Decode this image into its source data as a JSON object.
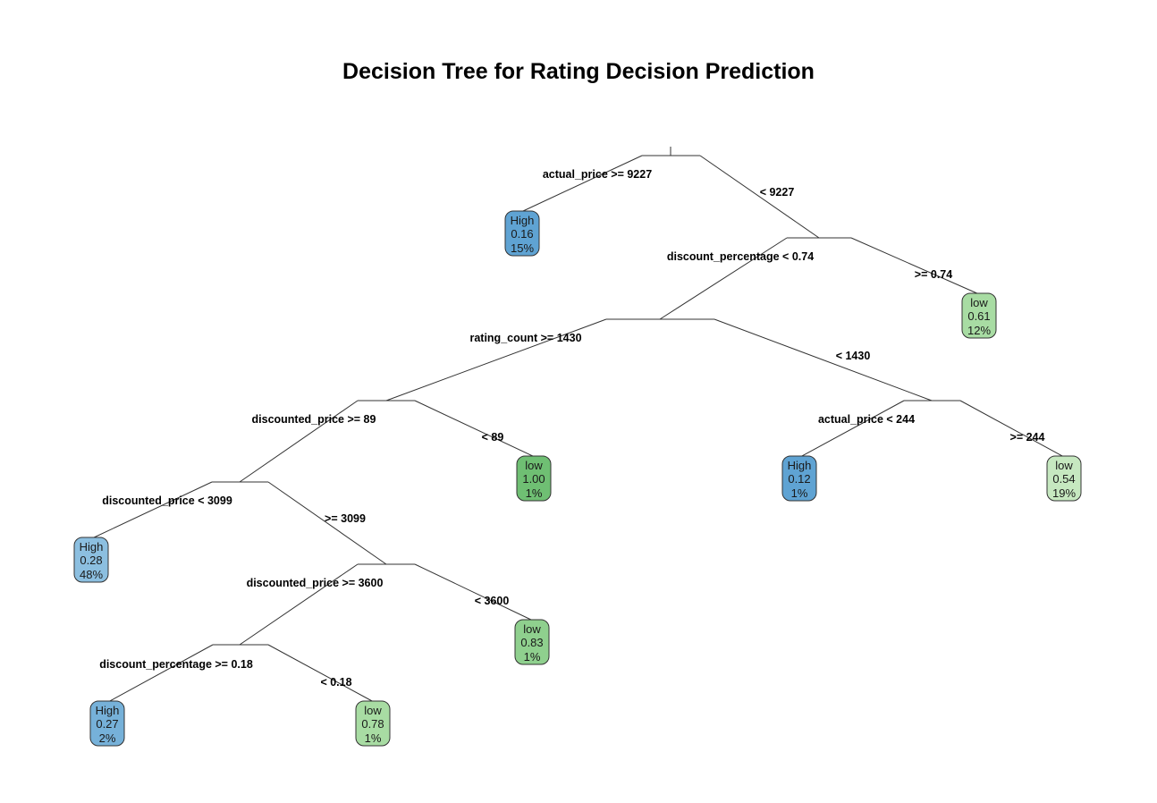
{
  "title": "Decision Tree for Rating Decision Prediction",
  "colors": {
    "high_dark": "#5fa3d3",
    "high_mid": "#76b1d9",
    "high_light": "#8cbfe0",
    "low_strong": "#6fbf73",
    "low_mid": "#8fd08e",
    "low_light": "#a8dca3",
    "low_pale": "#c6e8c0"
  },
  "splits": [
    {
      "id": "root",
      "label": "actual_price >= 9227",
      "yes": "actual_price >= 9227",
      "no": "< 9227"
    },
    {
      "id": "n2",
      "label": "discount_percentage < 0.74",
      "no": ">= 0.74"
    },
    {
      "id": "n3",
      "label": "rating_count >= 1430",
      "no": "< 1430"
    },
    {
      "id": "n4",
      "label": "discounted_price >= 89",
      "no": "< 89"
    },
    {
      "id": "n5",
      "label": "actual_price < 244",
      "no": ">= 244"
    },
    {
      "id": "n6",
      "label": "discounted_price < 3099",
      "no": ">= 3099"
    },
    {
      "id": "n7",
      "label": "discounted_price >= 3600",
      "no": "< 3600"
    },
    {
      "id": "n8",
      "label": "discount_percentage >= 0.18",
      "no": "< 0.18"
    }
  ],
  "edge_labels": [
    "< 9227",
    ">= 0.74",
    "< 1430",
    "< 89",
    ">= 244",
    ">= 3099",
    "< 3600",
    "< 0.18"
  ],
  "leaves": [
    {
      "id": "L1",
      "class": "High",
      "prob": "0.16",
      "pct": "15%",
      "color": "high_dark"
    },
    {
      "id": "L2",
      "class": "low",
      "prob": "0.61",
      "pct": "12%",
      "color": "low_light"
    },
    {
      "id": "L3",
      "class": "low",
      "prob": "1.00",
      "pct": "1%",
      "color": "low_strong"
    },
    {
      "id": "L4",
      "class": "High",
      "prob": "0.12",
      "pct": "1%",
      "color": "high_dark"
    },
    {
      "id": "L5",
      "class": "low",
      "prob": "0.54",
      "pct": "19%",
      "color": "low_pale"
    },
    {
      "id": "L6",
      "class": "High",
      "prob": "0.28",
      "pct": "48%",
      "color": "high_light"
    },
    {
      "id": "L7",
      "class": "low",
      "prob": "0.83",
      "pct": "1%",
      "color": "low_mid"
    },
    {
      "id": "L8",
      "class": "High",
      "prob": "0.27",
      "pct": "2%",
      "color": "high_mid"
    },
    {
      "id": "L9",
      "class": "low",
      "prob": "0.78",
      "pct": "1%",
      "color": "low_light"
    }
  ]
}
